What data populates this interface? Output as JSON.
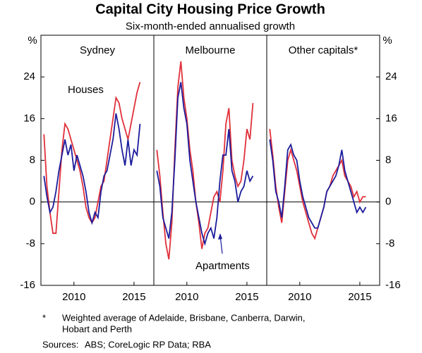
{
  "title": "Capital City Housing Price Growth",
  "subtitle": "Six-month-ended annualised growth",
  "y_unit": "%",
  "footnote_marker": "*",
  "footnote_lines": [
    "Weighted average of Adelaide, Brisbane, Canberra, Darwin,",
    "Hobart and Perth"
  ],
  "sources_label": "Sources:",
  "sources": "ABS; CoreLogic RP Data; RBA",
  "chart_data": [
    {
      "type": "line",
      "title": "Sydney",
      "x": [
        2007.5,
        2007.75,
        2008,
        2008.25,
        2008.5,
        2008.75,
        2009,
        2009.25,
        2009.5,
        2009.75,
        2010,
        2010.25,
        2010.5,
        2010.75,
        2011,
        2011.25,
        2011.5,
        2011.75,
        2012,
        2012.25,
        2012.5,
        2012.75,
        2013,
        2013.25,
        2013.5,
        2013.75,
        2014,
        2014.25,
        2014.5,
        2014.75,
        2015,
        2015.25,
        2015.5
      ],
      "series": [
        {
          "name": "Houses",
          "color": "#e0303a",
          "values": [
            13,
            3,
            -2,
            -6,
            -6,
            2,
            10,
            15,
            14,
            12,
            10,
            8,
            6,
            3,
            -1,
            -3,
            -4,
            -3,
            0,
            3,
            4,
            8,
            12,
            16,
            20,
            19,
            16,
            14,
            12,
            15,
            18,
            21,
            23
          ]
        },
        {
          "name": "Apartments",
          "color": "#1c1c9c",
          "values": [
            5,
            1,
            -2,
            -1,
            2,
            6,
            9,
            12,
            9,
            11,
            6,
            9,
            7,
            5,
            2,
            -2,
            -4,
            -2,
            -3,
            2,
            5,
            6,
            9,
            12,
            17,
            14,
            10,
            7,
            12,
            7,
            10,
            9,
            15
          ]
        }
      ],
      "xlim": [
        2007.25,
        2016.65
      ],
      "xticks": [
        2010,
        2015
      ],
      "ylim": [
        -16,
        32
      ],
      "yticks": [
        -16,
        -8,
        0,
        8,
        16,
        24
      ]
    },
    {
      "type": "line",
      "title": "Melbourne",
      "x": [
        2007.5,
        2007.75,
        2008,
        2008.25,
        2008.5,
        2008.75,
        2009,
        2009.25,
        2009.5,
        2009.75,
        2010,
        2010.25,
        2010.5,
        2010.75,
        2011,
        2011.25,
        2011.5,
        2011.75,
        2012,
        2012.25,
        2012.5,
        2012.75,
        2013,
        2013.25,
        2013.5,
        2013.75,
        2014,
        2014.25,
        2014.5,
        2014.75,
        2015,
        2015.25,
        2015.5
      ],
      "series": [
        {
          "name": "Houses",
          "color": "#e0303a",
          "values": [
            10,
            5,
            -2,
            -8,
            -11,
            -4,
            10,
            22,
            27,
            20,
            16,
            10,
            6,
            0,
            -4,
            -9,
            -6,
            -5,
            -2,
            1,
            2,
            0,
            6,
            15,
            18,
            8,
            5,
            3,
            4,
            8,
            14,
            12,
            19
          ]
        },
        {
          "name": "Apartments",
          "color": "#1c1c9c",
          "values": [
            6,
            3,
            -3,
            -5,
            -7,
            -2,
            8,
            20,
            23,
            18,
            15,
            8,
            4,
            0,
            -3,
            -6,
            -8,
            -6,
            -5,
            -7,
            -3,
            4,
            9,
            9,
            14,
            6,
            4,
            0,
            2,
            3,
            6,
            4,
            5
          ]
        }
      ],
      "xlim": [
        2007.25,
        2016.65
      ],
      "xticks": [
        2010,
        2015
      ],
      "ylim": [
        -16,
        32
      ],
      "yticks": [
        -16,
        -8,
        0,
        8,
        16,
        24
      ]
    },
    {
      "type": "line",
      "title": "Other capitals*",
      "x": [
        2007.5,
        2007.75,
        2008,
        2008.25,
        2008.5,
        2008.75,
        2009,
        2009.25,
        2009.5,
        2009.75,
        2010,
        2010.25,
        2010.5,
        2010.75,
        2011,
        2011.25,
        2011.5,
        2011.75,
        2012,
        2012.25,
        2012.5,
        2012.75,
        2013,
        2013.25,
        2013.5,
        2013.75,
        2014,
        2014.25,
        2014.5,
        2014.75,
        2015,
        2015.25,
        2015.5
      ],
      "series": [
        {
          "name": "Houses",
          "color": "#e0303a",
          "values": [
            14,
            9,
            3,
            -1,
            -4,
            2,
            8,
            10,
            8,
            6,
            3,
            0,
            -2,
            -4,
            -6,
            -7,
            -5,
            -3,
            -1,
            2,
            3,
            5,
            6,
            7,
            8,
            5,
            4,
            3,
            1,
            2,
            0,
            1,
            1
          ]
        },
        {
          "name": "Apartments",
          "color": "#1c1c9c",
          "values": [
            12,
            8,
            2,
            0,
            -3,
            3,
            10,
            11,
            9,
            8,
            4,
            1,
            -1,
            -3,
            -4,
            -5,
            -5,
            -3,
            -1,
            2,
            3,
            4,
            5,
            7,
            10,
            6,
            4,
            2,
            0,
            -2,
            -1,
            -2,
            -1
          ]
        }
      ],
      "xlim": [
        2007.25,
        2016.65
      ],
      "xticks": [
        2010,
        2015
      ],
      "ylim": [
        -16,
        32
      ],
      "yticks": [
        -16,
        -8,
        0,
        8,
        16,
        24
      ]
    }
  ]
}
